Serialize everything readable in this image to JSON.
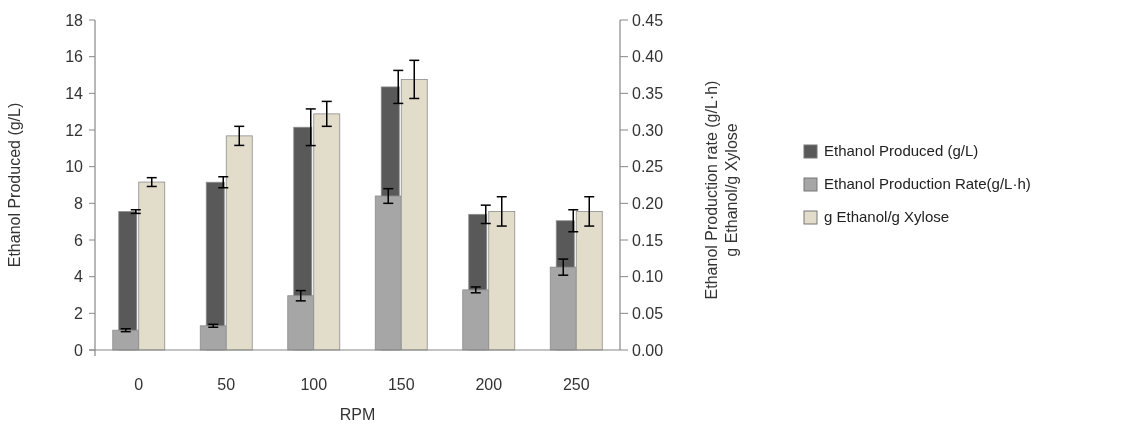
{
  "chart_data": {
    "type": "bar",
    "xlabel": "RPM",
    "ylabel": "Ethanol Produced (g/L)",
    "y2label": "Ethanol Production  rate (g/L·h)\ng Ethanol/g Xylose",
    "categories": [
      "0",
      "50",
      "100",
      "150",
      "200",
      "250"
    ],
    "series": [
      {
        "name": "Ethanol Produced (g/L)",
        "color": "#595959",
        "values": [
          7.55,
          9.15,
          12.15,
          14.35,
          7.4,
          7.05
        ],
        "errors": [
          0.1,
          0.3,
          1.0,
          0.9,
          0.5,
          0.6
        ]
      },
      {
        "name": "Ethanol Production Rate(g/L·h)",
        "color": "#a6a6a6",
        "axis": "y2",
        "values": [
          0.027,
          0.033,
          0.074,
          0.21,
          0.082,
          0.113
        ],
        "errors": [
          0.002,
          0.002,
          0.007,
          0.01,
          0.004,
          0.011
        ]
      },
      {
        "name": "g Ethanol/g Xylose",
        "color": "#e2dccb",
        "axis": "y2",
        "values": [
          0.229,
          0.292,
          0.322,
          0.369,
          0.189,
          0.189
        ],
        "errors": [
          0.006,
          0.013,
          0.017,
          0.026,
          0.02,
          0.02
        ]
      }
    ],
    "ylim": [
      0,
      18
    ],
    "yticks": [
      0,
      2,
      4,
      6,
      8,
      10,
      12,
      14,
      16,
      18
    ],
    "y2lim": [
      0,
      0.45
    ],
    "y2ticks": [
      {
        "value": 0,
        "label": "0.00"
      },
      {
        "value": 0.05,
        "label": "0.05"
      },
      {
        "value": 0.1,
        "label": "0.10"
      },
      {
        "value": 0.15,
        "label": "0.15"
      },
      {
        "value": 0.2,
        "label": "0.20"
      },
      {
        "value": 0.25,
        "label": "0.25"
      },
      {
        "value": 0.3,
        "label": "0.30"
      },
      {
        "value": 0.35,
        "label": "0.35"
      },
      {
        "value": 0.4,
        "label": "0.40"
      },
      {
        "value": 0.45,
        "label": "0.45"
      }
    ],
    "grid": false,
    "legend": "right"
  }
}
